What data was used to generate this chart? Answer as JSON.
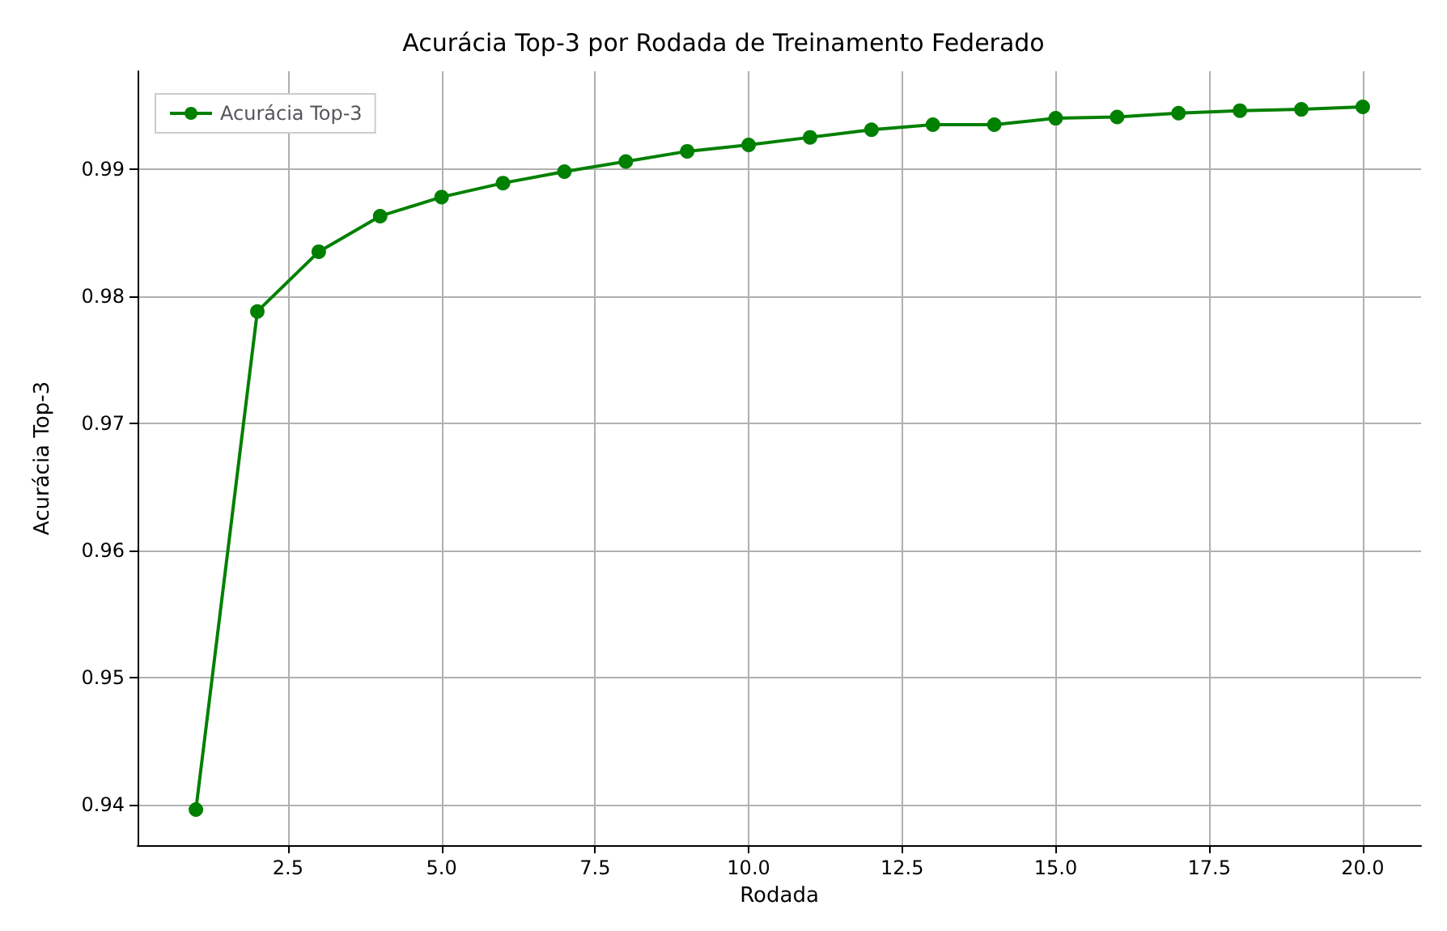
{
  "chart_data": {
    "type": "line",
    "title": "Acurácia Top-3 por Rodada de Treinamento Federado",
    "xlabel": "Rodada",
    "ylabel": "Acurácia Top-3",
    "x": [
      1,
      2,
      3,
      4,
      5,
      6,
      7,
      8,
      9,
      10,
      11,
      12,
      13,
      14,
      15,
      16,
      17,
      18,
      19,
      20
    ],
    "series": [
      {
        "name": "Acurácia Top-3",
        "color": "#008000",
        "values": [
          0.9396,
          0.9788,
          0.9835,
          0.9863,
          0.9878,
          0.9889,
          0.9898,
          0.9906,
          0.9914,
          0.9919,
          0.9925,
          0.9931,
          0.9935,
          0.9935,
          0.994,
          0.9941,
          0.9944,
          0.9946,
          0.9947,
          0.9949
        ]
      }
    ],
    "xlim": [
      0.05,
      20.95
    ],
    "ylim": [
      0.9368,
      0.9977
    ],
    "xticks": [
      {
        "value": 2.5,
        "label": "2.5"
      },
      {
        "value": 5,
        "label": "5.0"
      },
      {
        "value": 7.5,
        "label": "7.5"
      },
      {
        "value": 10,
        "label": "10.0"
      },
      {
        "value": 12.5,
        "label": "12.5"
      },
      {
        "value": 15,
        "label": "15.0"
      },
      {
        "value": 17.5,
        "label": "17.5"
      },
      {
        "value": 20,
        "label": "20.0"
      }
    ],
    "yticks": [
      {
        "value": 0.94,
        "label": "0.94"
      },
      {
        "value": 0.95,
        "label": "0.95"
      },
      {
        "value": 0.96,
        "label": "0.96"
      },
      {
        "value": 0.97,
        "label": "0.97"
      },
      {
        "value": 0.98,
        "label": "0.98"
      },
      {
        "value": 0.99,
        "label": "0.99"
      }
    ],
    "grid": true,
    "legend": "top left",
    "marker": "circle",
    "line_style": "solid"
  }
}
